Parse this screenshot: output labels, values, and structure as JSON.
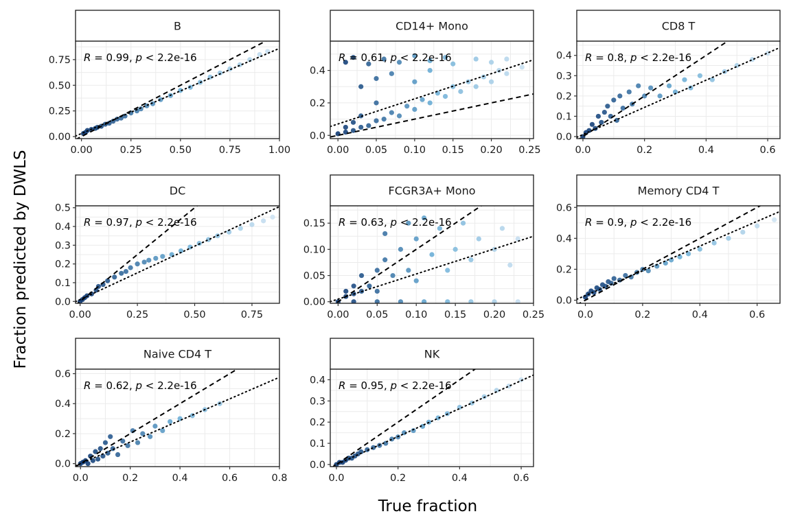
{
  "figure": {
    "xlabel": "True fraction",
    "ylabel": "Fraction predicted by DWLS"
  },
  "colors": {
    "points_light": "#d4e6f4",
    "points_mid": "#6baed6",
    "points_dark": "#08306b",
    "identity_line": "#000000",
    "fit_line": "#000000",
    "grid": "#ebebeb",
    "strip_fill": "#ffffff"
  },
  "chart_data": [
    {
      "type": "scatter",
      "panel": "B",
      "annotation": {
        "R": "0.99",
        "p": "< 2.2e-16"
      },
      "xlim": [
        -0.03,
        1.0
      ],
      "ylim": [
        -0.02,
        0.93
      ],
      "xticks": [
        "0.00",
        "0.25",
        "0.50",
        "0.75",
        "1.00"
      ],
      "yticks": [
        "0.00",
        "0.25",
        "0.50",
        "0.75"
      ],
      "fit": {
        "slope": 0.83,
        "intercept": 0.03
      },
      "points": [
        [
          0.01,
          0.03
        ],
        [
          0.02,
          0.04
        ],
        [
          0.03,
          0.06
        ],
        [
          0.05,
          0.07
        ],
        [
          0.07,
          0.08
        ],
        [
          0.08,
          0.09
        ],
        [
          0.1,
          0.1
        ],
        [
          0.12,
          0.12
        ],
        [
          0.14,
          0.13
        ],
        [
          0.16,
          0.15
        ],
        [
          0.18,
          0.17
        ],
        [
          0.2,
          0.18
        ],
        [
          0.22,
          0.2
        ],
        [
          0.25,
          0.23
        ],
        [
          0.28,
          0.25
        ],
        [
          0.3,
          0.27
        ],
        [
          0.33,
          0.3
        ],
        [
          0.36,
          0.32
        ],
        [
          0.4,
          0.36
        ],
        [
          0.45,
          0.4
        ],
        [
          0.5,
          0.45
        ],
        [
          0.55,
          0.48
        ],
        [
          0.6,
          0.53
        ],
        [
          0.65,
          0.58
        ],
        [
          0.7,
          0.62
        ],
        [
          0.75,
          0.66
        ],
        [
          0.8,
          0.7
        ],
        [
          0.85,
          0.75
        ],
        [
          0.9,
          0.8
        ],
        [
          0.94,
          0.83
        ]
      ]
    },
    {
      "type": "scatter",
      "panel": "CD14+ Mono",
      "annotation": {
        "R": "0.61",
        "p": "< 2.2e-16"
      },
      "xlim": [
        -0.01,
        0.255
      ],
      "ylim": [
        -0.02,
        0.58
      ],
      "xticks": [
        "0.00",
        "0.05",
        "0.10",
        "0.15",
        "0.20",
        "0.25"
      ],
      "yticks": [
        "0.0",
        "0.2",
        "0.4"
      ],
      "fit": {
        "slope": 1.55,
        "intercept": 0.07
      },
      "points": [
        [
          0.0,
          0.01
        ],
        [
          0.01,
          0.02
        ],
        [
          0.01,
          0.05
        ],
        [
          0.02,
          0.03
        ],
        [
          0.02,
          0.08
        ],
        [
          0.03,
          0.05
        ],
        [
          0.03,
          0.12
        ],
        [
          0.04,
          0.06
        ],
        [
          0.05,
          0.09
        ],
        [
          0.05,
          0.2
        ],
        [
          0.06,
          0.1
        ],
        [
          0.07,
          0.14
        ],
        [
          0.08,
          0.12
        ],
        [
          0.09,
          0.18
        ],
        [
          0.1,
          0.16
        ],
        [
          0.11,
          0.22
        ],
        [
          0.12,
          0.2
        ],
        [
          0.13,
          0.26
        ],
        [
          0.14,
          0.24
        ],
        [
          0.15,
          0.3
        ],
        [
          0.16,
          0.27
        ],
        [
          0.17,
          0.33
        ],
        [
          0.18,
          0.3
        ],
        [
          0.19,
          0.36
        ],
        [
          0.2,
          0.33
        ],
        [
          0.21,
          0.4
        ],
        [
          0.22,
          0.38
        ],
        [
          0.24,
          0.42
        ],
        [
          0.01,
          0.45
        ],
        [
          0.02,
          0.48
        ],
        [
          0.04,
          0.44
        ],
        [
          0.06,
          0.47
        ],
        [
          0.08,
          0.45
        ],
        [
          0.1,
          0.49
        ],
        [
          0.12,
          0.46
        ],
        [
          0.14,
          0.48
        ],
        [
          0.15,
          0.44
        ],
        [
          0.18,
          0.47
        ],
        [
          0.2,
          0.45
        ],
        [
          0.22,
          0.47
        ],
        [
          0.03,
          0.3
        ],
        [
          0.05,
          0.35
        ],
        [
          0.07,
          0.38
        ],
        [
          0.1,
          0.33
        ],
        [
          0.12,
          0.4
        ]
      ]
    },
    {
      "type": "scatter",
      "panel": "CD8 T",
      "annotation": {
        "R": "0.8",
        "p": "< 2.2e-16"
      },
      "xlim": [
        -0.02,
        0.64
      ],
      "ylim": [
        -0.01,
        0.47
      ],
      "xticks": [
        "0.0",
        "0.2",
        "0.4",
        "0.6"
      ],
      "yticks": [
        "0.0",
        "0.1",
        "0.2",
        "0.3",
        "0.4"
      ],
      "fit": {
        "slope": 0.67,
        "intercept": 0.01
      },
      "points": [
        [
          0.0,
          0.0
        ],
        [
          0.01,
          0.02
        ],
        [
          0.02,
          0.03
        ],
        [
          0.03,
          0.06
        ],
        [
          0.04,
          0.04
        ],
        [
          0.05,
          0.1
        ],
        [
          0.06,
          0.07
        ],
        [
          0.07,
          0.12
        ],
        [
          0.08,
          0.15
        ],
        [
          0.09,
          0.1
        ],
        [
          0.1,
          0.18
        ],
        [
          0.11,
          0.08
        ],
        [
          0.12,
          0.2
        ],
        [
          0.13,
          0.14
        ],
        [
          0.15,
          0.22
        ],
        [
          0.16,
          0.16
        ],
        [
          0.18,
          0.25
        ],
        [
          0.2,
          0.2
        ],
        [
          0.22,
          0.24
        ],
        [
          0.25,
          0.2
        ],
        [
          0.28,
          0.25
        ],
        [
          0.3,
          0.22
        ],
        [
          0.33,
          0.28
        ],
        [
          0.35,
          0.24
        ],
        [
          0.38,
          0.3
        ],
        [
          0.42,
          0.28
        ],
        [
          0.46,
          0.32
        ],
        [
          0.5,
          0.35
        ],
        [
          0.55,
          0.38
        ],
        [
          0.6,
          0.41
        ]
      ]
    },
    {
      "type": "scatter",
      "panel": "DC",
      "annotation": {
        "R": "0.97",
        "p": "< 2.2e-16"
      },
      "xlim": [
        -0.02,
        0.87
      ],
      "ylim": [
        -0.01,
        0.51
      ],
      "xticks": [
        "0.00",
        "0.25",
        "0.50",
        "0.75"
      ],
      "yticks": [
        "0.0",
        "0.1",
        "0.2",
        "0.3",
        "0.4",
        "0.5"
      ],
      "fit": {
        "slope": 0.57,
        "intercept": 0.01
      },
      "points": [
        [
          0.0,
          0.0
        ],
        [
          0.01,
          0.01
        ],
        [
          0.02,
          0.02
        ],
        [
          0.03,
          0.03
        ],
        [
          0.05,
          0.04
        ],
        [
          0.07,
          0.06
        ],
        [
          0.08,
          0.08
        ],
        [
          0.1,
          0.09
        ],
        [
          0.12,
          0.11
        ],
        [
          0.15,
          0.13
        ],
        [
          0.18,
          0.15
        ],
        [
          0.2,
          0.16
        ],
        [
          0.22,
          0.18
        ],
        [
          0.25,
          0.2
        ],
        [
          0.28,
          0.21
        ],
        [
          0.3,
          0.22
        ],
        [
          0.33,
          0.23
        ],
        [
          0.36,
          0.24
        ],
        [
          0.4,
          0.25
        ],
        [
          0.44,
          0.27
        ],
        [
          0.48,
          0.29
        ],
        [
          0.52,
          0.31
        ],
        [
          0.56,
          0.33
        ],
        [
          0.6,
          0.35
        ],
        [
          0.65,
          0.37
        ],
        [
          0.7,
          0.39
        ],
        [
          0.75,
          0.41
        ],
        [
          0.8,
          0.43
        ],
        [
          0.84,
          0.45
        ]
      ]
    },
    {
      "type": "scatter",
      "panel": "FCGR3A+ Mono",
      "annotation": {
        "R": "0.63",
        "p": "< 2.2e-16"
      },
      "xlim": [
        -0.01,
        0.25
      ],
      "ylim": [
        -0.003,
        0.183
      ],
      "xticks": [
        "0.00",
        "0.05",
        "0.10",
        "0.15",
        "0.20",
        "0.25"
      ],
      "yticks": [
        "0.00",
        "0.05",
        "0.10",
        "0.15"
      ],
      "fit": {
        "slope": 0.48,
        "intercept": 0.005
      },
      "points": [
        [
          0.0,
          0.0
        ],
        [
          0.01,
          0.01
        ],
        [
          0.01,
          0.02
        ],
        [
          0.02,
          0.015
        ],
        [
          0.02,
          0.03
        ],
        [
          0.03,
          0.02
        ],
        [
          0.03,
          0.05
        ],
        [
          0.04,
          0.03
        ],
        [
          0.05,
          0.06
        ],
        [
          0.05,
          0.02
        ],
        [
          0.06,
          0.08
        ],
        [
          0.07,
          0.05
        ],
        [
          0.08,
          0.1
        ],
        [
          0.09,
          0.06
        ],
        [
          0.1,
          0.12
        ],
        [
          0.1,
          0.04
        ],
        [
          0.12,
          0.09
        ],
        [
          0.13,
          0.14
        ],
        [
          0.14,
          0.06
        ],
        [
          0.15,
          0.1
        ],
        [
          0.16,
          0.15
        ],
        [
          0.17,
          0.08
        ],
        [
          0.18,
          0.12
        ],
        [
          0.2,
          0.1
        ],
        [
          0.21,
          0.14
        ],
        [
          0.22,
          0.07
        ],
        [
          0.23,
          0.12
        ],
        [
          0.02,
          0.0
        ],
        [
          0.05,
          0.0
        ],
        [
          0.08,
          0.0
        ],
        [
          0.11,
          0.0
        ],
        [
          0.14,
          0.0
        ],
        [
          0.17,
          0.0
        ],
        [
          0.2,
          0.0
        ],
        [
          0.23,
          0.0
        ],
        [
          0.06,
          0.13
        ],
        [
          0.09,
          0.15
        ],
        [
          0.11,
          0.16
        ]
      ]
    },
    {
      "type": "scatter",
      "panel": "Memory CD4 T",
      "annotation": {
        "R": "0.9",
        "p": "< 2.2e-16"
      },
      "xlim": [
        -0.03,
        0.68
      ],
      "ylim": [
        -0.02,
        0.61
      ],
      "xticks": [
        "0.0",
        "0.2",
        "0.4",
        "0.6"
      ],
      "yticks": [
        "0.0",
        "0.2",
        "0.4",
        "0.6"
      ],
      "fit": {
        "slope": 0.8,
        "intercept": 0.03
      },
      "points": [
        [
          0.0,
          0.02
        ],
        [
          0.01,
          0.04
        ],
        [
          0.02,
          0.06
        ],
        [
          0.03,
          0.05
        ],
        [
          0.04,
          0.08
        ],
        [
          0.05,
          0.07
        ],
        [
          0.06,
          0.1
        ],
        [
          0.07,
          0.09
        ],
        [
          0.08,
          0.12
        ],
        [
          0.09,
          0.11
        ],
        [
          0.1,
          0.14
        ],
        [
          0.12,
          0.13
        ],
        [
          0.14,
          0.16
        ],
        [
          0.16,
          0.15
        ],
        [
          0.18,
          0.18
        ],
        [
          0.2,
          0.2
        ],
        [
          0.22,
          0.19
        ],
        [
          0.25,
          0.22
        ],
        [
          0.28,
          0.24
        ],
        [
          0.3,
          0.26
        ],
        [
          0.33,
          0.28
        ],
        [
          0.36,
          0.3
        ],
        [
          0.4,
          0.33
        ],
        [
          0.45,
          0.37
        ],
        [
          0.5,
          0.4
        ],
        [
          0.55,
          0.44
        ],
        [
          0.6,
          0.48
        ],
        [
          0.66,
          0.52
        ]
      ]
    },
    {
      "type": "scatter",
      "panel": "Naive CD4 T",
      "annotation": {
        "R": "0.62",
        "p": "< 2.2e-16"
      },
      "xlim": [
        -0.02,
        0.8
      ],
      "ylim": [
        -0.02,
        0.63
      ],
      "xticks": [
        "0.0",
        "0.2",
        "0.4",
        "0.6",
        "0.8"
      ],
      "yticks": [
        "0.0",
        "0.2",
        "0.4",
        "0.6"
      ],
      "fit": {
        "slope": 0.72,
        "intercept": 0.0
      },
      "points": [
        [
          0.0,
          0.0
        ],
        [
          0.01,
          0.01
        ],
        [
          0.02,
          0.02
        ],
        [
          0.03,
          0.0
        ],
        [
          0.04,
          0.05
        ],
        [
          0.05,
          0.02
        ],
        [
          0.06,
          0.08
        ],
        [
          0.07,
          0.03
        ],
        [
          0.08,
          0.1
        ],
        [
          0.09,
          0.05
        ],
        [
          0.1,
          0.14
        ],
        [
          0.11,
          0.07
        ],
        [
          0.12,
          0.18
        ],
        [
          0.13,
          0.1
        ],
        [
          0.15,
          0.06
        ],
        [
          0.17,
          0.15
        ],
        [
          0.19,
          0.12
        ],
        [
          0.21,
          0.22
        ],
        [
          0.23,
          0.14
        ],
        [
          0.25,
          0.2
        ],
        [
          0.28,
          0.18
        ],
        [
          0.3,
          0.25
        ],
        [
          0.33,
          0.22
        ],
        [
          0.36,
          0.28
        ],
        [
          0.4,
          0.3
        ],
        [
          0.45,
          0.32
        ],
        [
          0.5,
          0.36
        ],
        [
          0.56,
          0.4
        ]
      ]
    },
    {
      "type": "scatter",
      "panel": "NK",
      "annotation": {
        "R": "0.95",
        "p": "< 2.2e-16"
      },
      "xlim": [
        -0.02,
        0.64
      ],
      "ylim": [
        -0.01,
        0.45
      ],
      "xticks": [
        "0.0",
        "0.2",
        "0.4",
        "0.6"
      ],
      "yticks": [
        "0.0",
        "0.1",
        "0.2",
        "0.3",
        "0.4"
      ],
      "fit": {
        "slope": 0.66,
        "intercept": 0.0
      },
      "points": [
        [
          0.0,
          0.0
        ],
        [
          0.01,
          0.01
        ],
        [
          0.02,
          0.01
        ],
        [
          0.03,
          0.02
        ],
        [
          0.04,
          0.03
        ],
        [
          0.05,
          0.03
        ],
        [
          0.06,
          0.04
        ],
        [
          0.07,
          0.05
        ],
        [
          0.08,
          0.06
        ],
        [
          0.1,
          0.07
        ],
        [
          0.12,
          0.08
        ],
        [
          0.14,
          0.09
        ],
        [
          0.16,
          0.1
        ],
        [
          0.18,
          0.12
        ],
        [
          0.2,
          0.13
        ],
        [
          0.22,
          0.15
        ],
        [
          0.25,
          0.16
        ],
        [
          0.28,
          0.18
        ],
        [
          0.3,
          0.2
        ],
        [
          0.33,
          0.22
        ],
        [
          0.36,
          0.24
        ],
        [
          0.4,
          0.27
        ],
        [
          0.44,
          0.29
        ],
        [
          0.48,
          0.32
        ],
        [
          0.52,
          0.35
        ],
        [
          0.56,
          0.37
        ],
        [
          0.6,
          0.4
        ]
      ]
    }
  ]
}
